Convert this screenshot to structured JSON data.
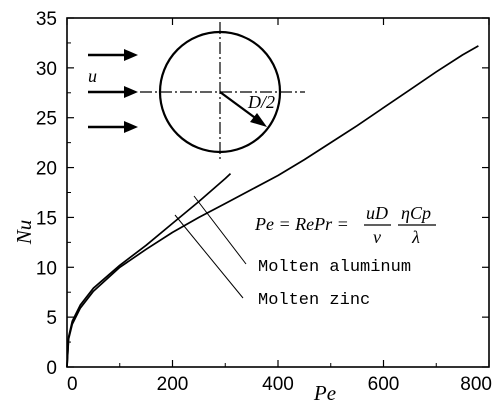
{
  "chart_data": {
    "type": "line",
    "title": "",
    "xlabel": "Pe",
    "ylabel": "Nu",
    "xlim": [
      0,
      800
    ],
    "ylim": [
      0,
      35
    ],
    "xticks": [
      0,
      200,
      400,
      600,
      800
    ],
    "yticks": [
      0,
      5,
      10,
      15,
      20,
      25,
      30,
      35
    ],
    "grid": false,
    "series": [
      {
        "name": "Molten aluminum",
        "x": [
          0,
          3,
          10,
          25,
          50,
          100,
          150,
          200,
          250,
          300,
          350,
          400,
          450,
          500,
          550,
          600,
          650,
          700,
          750,
          780
        ],
        "y": [
          0,
          2.8,
          4.3,
          5.9,
          7.6,
          10.0,
          11.8,
          13.5,
          15.0,
          16.4,
          17.8,
          19.2,
          20.8,
          22.5,
          24.2,
          26.0,
          27.8,
          29.6,
          31.3,
          32.2
        ]
      },
      {
        "name": "Molten zinc",
        "x": [
          0,
          3,
          10,
          25,
          50,
          100,
          150,
          200,
          250,
          300,
          310
        ],
        "y": [
          0,
          3.0,
          4.6,
          6.2,
          7.9,
          10.2,
          12.2,
          14.4,
          16.6,
          18.9,
          19.4
        ]
      }
    ],
    "annotations": {
      "equation": {
        "lhs": "Pe = RePr =",
        "frac1_num": "uD",
        "frac1_den": "ν",
        "frac2_num": "ηCp",
        "frac2_den": "λ"
      },
      "flow_label": "u",
      "radius_label": "D/2"
    }
  }
}
